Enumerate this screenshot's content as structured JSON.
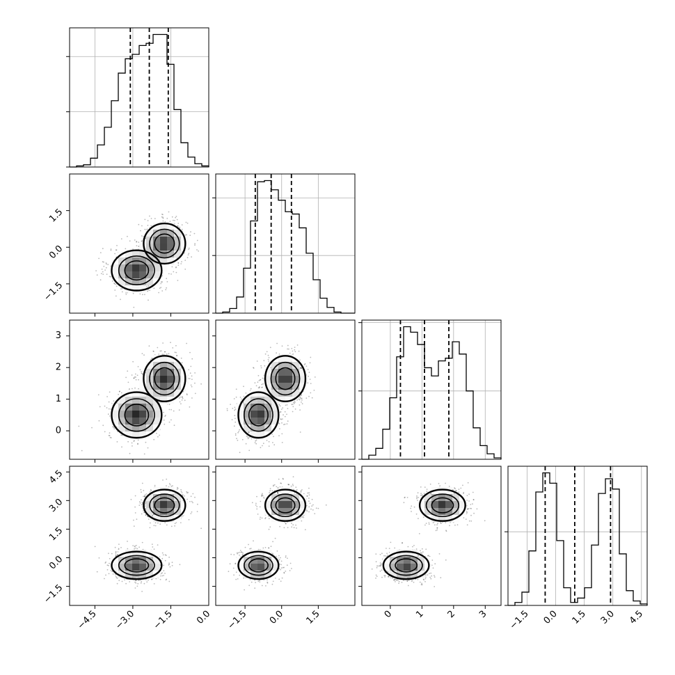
{
  "chart_data": {
    "type": "corner",
    "title": "",
    "grid": true,
    "colors": {
      "line": "#000000",
      "grid": "#b0b0b0",
      "density": "#000000",
      "points": "#000000"
    },
    "dimensions": [
      {
        "range": [
          -5.5,
          0.0
        ],
        "ticks": [
          -4.5,
          -3.0,
          -1.5,
          0.0
        ],
        "tick_labels": [
          "−4.5",
          "−3.0",
          "−1.5",
          "0.0"
        ],
        "quantiles": [
          -3.1,
          -2.35,
          -1.6
        ]
      },
      {
        "range": [
          -2.7,
          3.0
        ],
        "ticks": [
          -1.5,
          0.0,
          1.5
        ],
        "tick_labels": [
          "−1.5",
          "0.0",
          "1.5"
        ],
        "quantiles": [
          -1.08,
          -0.43,
          0.4
        ]
      },
      {
        "range": [
          -0.9,
          3.5
        ],
        "ticks": [
          0,
          1,
          2,
          3
        ],
        "tick_labels": [
          "0",
          "1",
          "2",
          "3"
        ],
        "quantiles": [
          0.32,
          1.08,
          1.85
        ]
      },
      {
        "range": [
          -2.5,
          4.8
        ],
        "ticks": [
          -1.5,
          0.0,
          1.5,
          3.0,
          4.5
        ],
        "tick_labels": [
          "−1.5",
          "0.0",
          "1.5",
          "3.0",
          "4.5"
        ],
        "quantiles": [
          -0.55,
          1.0,
          2.88
        ]
      }
    ],
    "modes": [
      {
        "name": "",
        "center": [
          -2.85,
          -0.95,
          0.5,
          -0.4
        ],
        "sd": [
          0.48,
          0.4,
          0.35,
          0.35
        ]
      },
      {
        "name": "",
        "center": [
          -1.75,
          0.15,
          1.65,
          2.75
        ],
        "sd": [
          0.4,
          0.4,
          0.35,
          0.4
        ]
      }
    ],
    "histograms": [
      {
        "dim": 0,
        "bin_edges": [
          -5.5,
          -5.225,
          -4.95,
          -4.675,
          -4.4,
          -4.125,
          -3.85,
          -3.575,
          -3.3,
          -3.025,
          -2.75,
          -2.475,
          -2.2,
          -1.925,
          -1.65,
          -1.375,
          -1.1,
          -0.825,
          -0.55,
          -0.275,
          0.0
        ],
        "counts": [
          0,
          0.01,
          0.02,
          0.08,
          0.2,
          0.36,
          0.6,
          0.85,
          0.98,
          1.02,
          1.1,
          1.12,
          1.2,
          1.2,
          0.93,
          0.52,
          0.22,
          0.09,
          0.03,
          0.01
        ],
        "ticks": [
          0,
          0.5,
          1.0,
          1.5
        ]
      },
      {
        "dim": 1,
        "bin_edges": [
          -2.7,
          -2.415,
          -2.13,
          -1.845,
          -1.56,
          -1.275,
          -0.99,
          -0.705,
          -0.42,
          -0.135,
          0.15,
          0.435,
          0.72,
          1.005,
          1.29,
          1.575,
          1.86,
          2.145,
          2.43,
          2.715,
          3.0
        ],
        "counts": [
          0,
          0.01,
          0.04,
          0.14,
          0.39,
          0.8,
          1.14,
          1.15,
          1.07,
          0.98,
          0.88,
          0.86,
          0.74,
          0.52,
          0.29,
          0.13,
          0.05,
          0.01,
          0,
          0
        ],
        "ticks": [
          0,
          0.5,
          1.0,
          1.5
        ]
      },
      {
        "dim": 2,
        "bin_edges": [
          -0.9,
          -0.68,
          -0.46,
          -0.24,
          -0.02,
          0.2,
          0.42,
          0.64,
          0.86,
          1.08,
          1.3,
          1.52,
          1.74,
          1.96,
          2.18,
          2.4,
          2.62,
          2.84,
          3.06,
          3.28,
          3.5
        ],
        "counts": [
          0,
          0.03,
          0.08,
          0.22,
          0.45,
          0.75,
          0.97,
          0.93,
          0.84,
          0.67,
          0.61,
          0.72,
          0.74,
          0.86,
          0.77,
          0.5,
          0.23,
          0.1,
          0.04,
          0.01
        ],
        "ticks": [
          0,
          0.5,
          1.0,
          1.5
        ]
      },
      {
        "dim": 3,
        "bin_edges": [
          -2.5,
          -2.135,
          -1.77,
          -1.405,
          -1.04,
          -0.675,
          -0.31,
          0.055,
          0.42,
          0.785,
          1.15,
          1.515,
          1.88,
          2.245,
          2.61,
          2.975,
          3.34,
          3.705,
          4.07,
          4.435,
          4.8
        ],
        "counts": [
          0,
          0.02,
          0.09,
          0.37,
          0.77,
          0.9,
          0.83,
          0.44,
          0.12,
          0.02,
          0.05,
          0.12,
          0.41,
          0.76,
          0.86,
          0.79,
          0.35,
          0.1,
          0.03,
          0.01
        ],
        "ticks": [
          0,
          0.5,
          1.0,
          1.5
        ]
      }
    ]
  }
}
